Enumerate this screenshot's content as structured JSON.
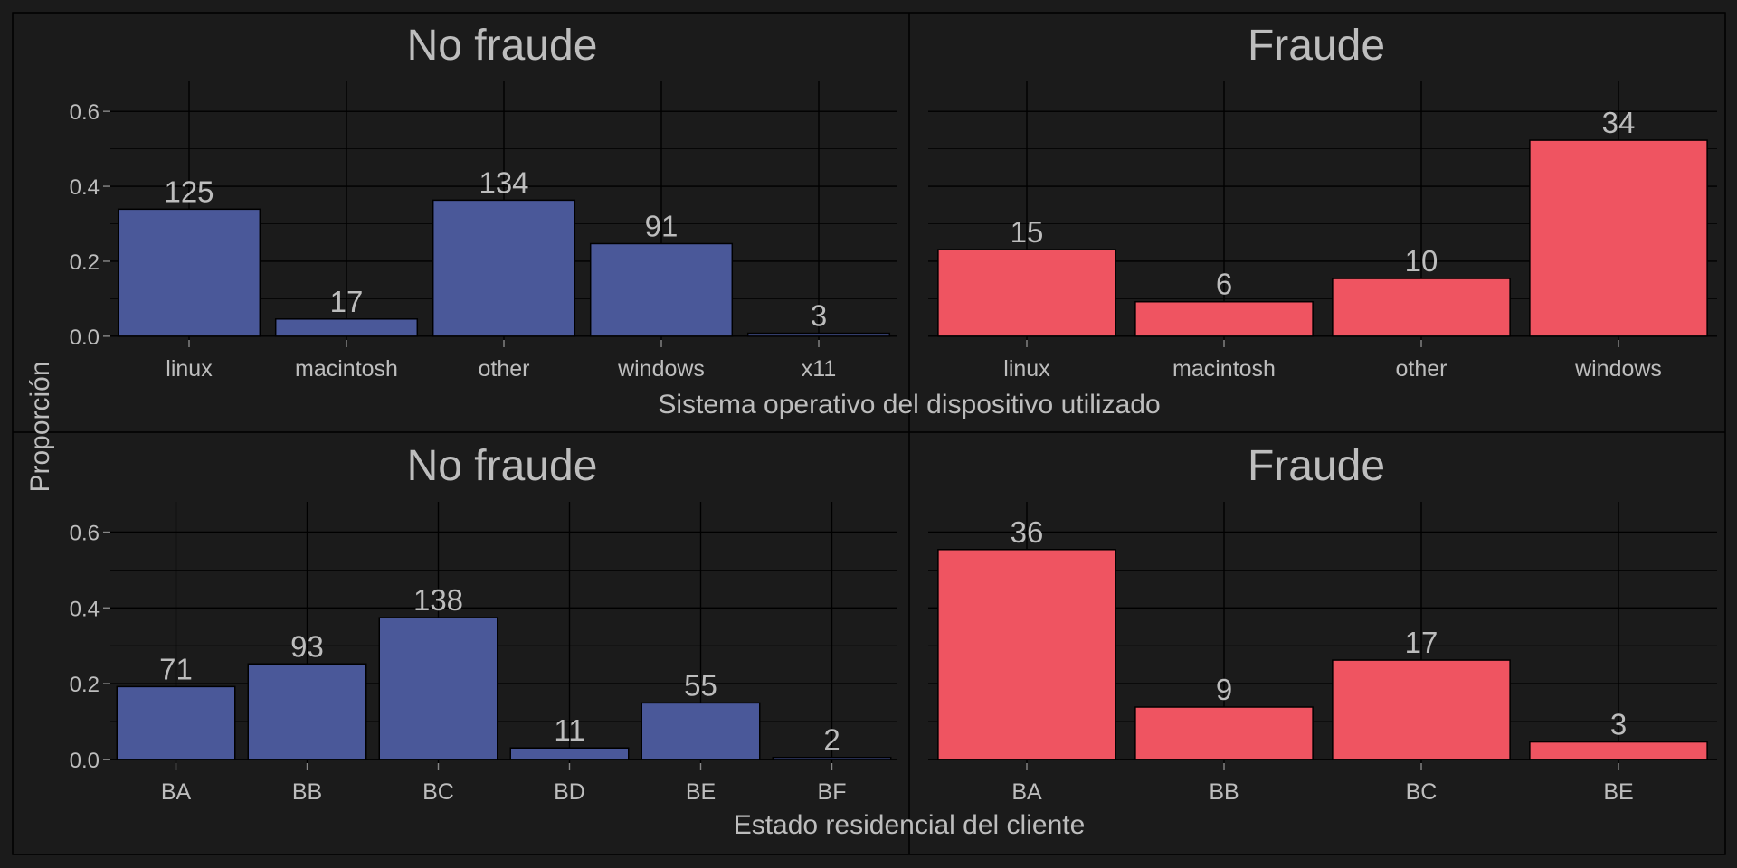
{
  "figure": {
    "ylabel": "Proporción",
    "colors": {
      "background": "#1b1b1b",
      "grid": "#000000",
      "text": "#bdbdbd",
      "no_fraude": "#4a5899",
      "fraude": "#ef5461"
    }
  },
  "chart_data": [
    {
      "type": "bar",
      "title": "No fraude",
      "xlabel": "Sistema operativo del dispositivo utilizado",
      "ylabel": "Proporción",
      "categories": [
        "linux",
        "macintosh",
        "other",
        "windows",
        "x11"
      ],
      "values": [
        0.339,
        0.046,
        0.363,
        0.247,
        0.008
      ],
      "labels": [
        "125",
        "17",
        "134",
        "91",
        "3"
      ],
      "ylim": [
        -0.01,
        0.68
      ],
      "yticks": [
        0.0,
        0.2,
        0.4,
        0.6
      ],
      "ytick_labels": [
        "0.0",
        "0.2",
        "0.4",
        "0.6"
      ],
      "color": "#4a5899",
      "grid": true
    },
    {
      "type": "bar",
      "title": "Fraude",
      "xlabel": "Sistema operativo del dispositivo utilizado",
      "ylabel": "Proporción",
      "categories": [
        "linux",
        "macintosh",
        "other",
        "windows"
      ],
      "values": [
        0.231,
        0.092,
        0.154,
        0.523
      ],
      "labels": [
        "15",
        "6",
        "10",
        "34"
      ],
      "ylim": [
        -0.01,
        0.68
      ],
      "yticks": [
        0.0,
        0.2,
        0.4,
        0.6
      ],
      "ytick_labels": [
        "0.0",
        "0.2",
        "0.4",
        "0.6"
      ],
      "color": "#ef5461",
      "grid": true
    },
    {
      "type": "bar",
      "title": "No fraude",
      "xlabel": "Estado residencial del cliente",
      "ylabel": "Proporción",
      "categories": [
        "BA",
        "BB",
        "BC",
        "BD",
        "BE",
        "BF"
      ],
      "values": [
        0.192,
        0.252,
        0.374,
        0.03,
        0.149,
        0.005
      ],
      "labels": [
        "71",
        "93",
        "138",
        "11",
        "55",
        "2"
      ],
      "ylim": [
        -0.01,
        0.68
      ],
      "yticks": [
        0.0,
        0.2,
        0.4,
        0.6
      ],
      "ytick_labels": [
        "0.0",
        "0.2",
        "0.4",
        "0.6"
      ],
      "color": "#4a5899",
      "grid": true
    },
    {
      "type": "bar",
      "title": "Fraude",
      "xlabel": "Estado residencial del cliente",
      "ylabel": "Proporción",
      "categories": [
        "BA",
        "BB",
        "BC",
        "BE"
      ],
      "values": [
        0.554,
        0.138,
        0.262,
        0.046
      ],
      "labels": [
        "36",
        "9",
        "17",
        "3"
      ],
      "ylim": [
        -0.01,
        0.68
      ],
      "yticks": [
        0.0,
        0.2,
        0.4,
        0.6
      ],
      "ytick_labels": [
        "0.0",
        "0.2",
        "0.4",
        "0.6"
      ],
      "color": "#ef5461",
      "grid": true
    }
  ]
}
